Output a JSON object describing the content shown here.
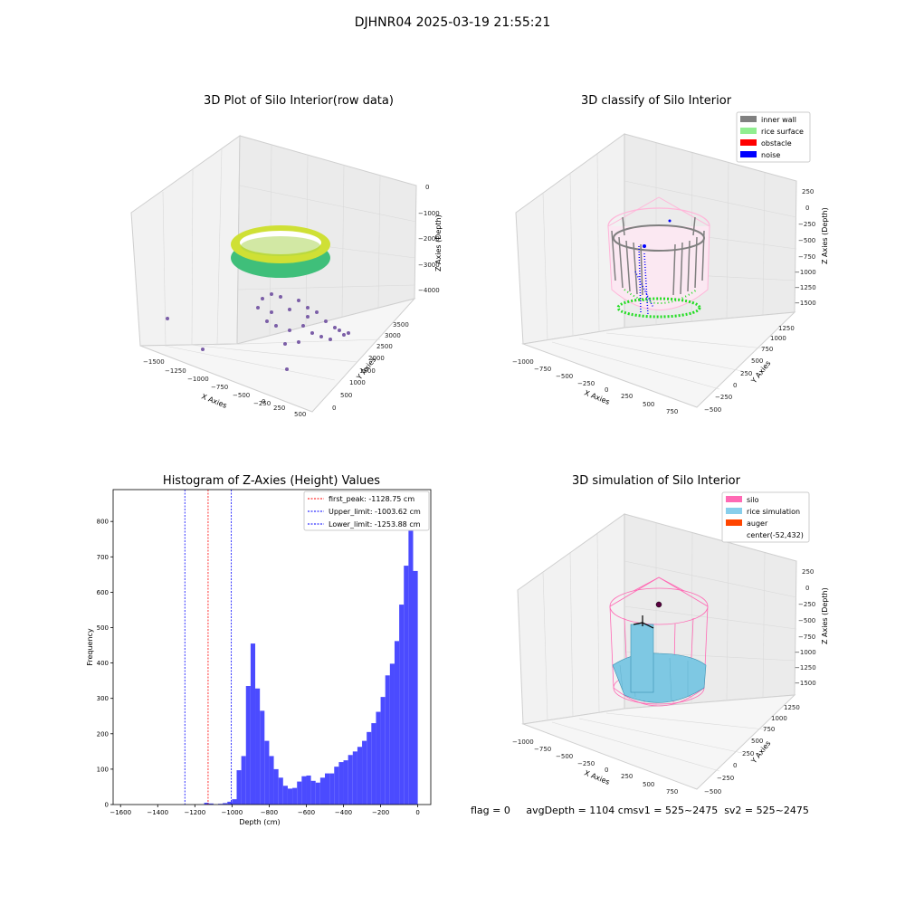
{
  "figure": {
    "title": "DJHNR04 2025-03-19 21:55:21"
  },
  "panels": {
    "raw": {
      "title": "3D Plot of Silo Interior(row data)",
      "xlabel": "X Axies",
      "ylabel": "Y Axies",
      "zlabel": "Z Axies (Depth)",
      "xticks": [
        "−1500",
        "−1250",
        "−1000",
        "−750",
        "−500",
        "−250",
        "0",
        "250",
        "500"
      ],
      "yticks": [
        "0",
        "500",
        "1000",
        "1500",
        "2000",
        "2500",
        "3000",
        "3500"
      ],
      "zticks": [
        "0",
        "−1000",
        "−2000",
        "−3000",
        "−4000"
      ]
    },
    "classify": {
      "title": "3D classify of Silo Interior",
      "xlabel": "X Axies",
      "ylabel": "Y Axies",
      "zlabel": "Z Axies (Depth)",
      "xticks": [
        "−1000",
        "−750",
        "−500",
        "−250",
        "0",
        "250",
        "500",
        "750"
      ],
      "yticks": [
        "−500",
        "−250",
        "0",
        "250",
        "500",
        "750",
        "1000",
        "1250"
      ],
      "zticks": [
        "250",
        "0",
        "−250",
        "−500",
        "−750",
        "−1000",
        "−1250",
        "−1500"
      ],
      "legend": [
        {
          "label": "inner wall",
          "color": "#808080"
        },
        {
          "label": "rice surface",
          "color": "#90ee90"
        },
        {
          "label": "obstacle",
          "color": "#ff0000"
        },
        {
          "label": "noise",
          "color": "#0000ff"
        }
      ]
    },
    "simulation": {
      "title": "3D simulation of Silo Interior",
      "xlabel": "X Axies",
      "ylabel": "Y Axies",
      "zlabel": "Z Axies (Depth)",
      "xticks": [
        "−1000",
        "−750",
        "−500",
        "−250",
        "0",
        "250",
        "500",
        "750"
      ],
      "yticks": [
        "−500",
        "−250",
        "0",
        "250",
        "500",
        "750",
        "1000",
        "1250"
      ],
      "zticks": [
        "250",
        "0",
        "−250",
        "−500",
        "−750",
        "−1000",
        "−1250",
        "−1500"
      ],
      "legend": [
        {
          "label": "silo",
          "color": "#ff69b4"
        },
        {
          "label": "rice simulation",
          "color": "#87ceeb"
        },
        {
          "label": "auger",
          "color": "#ff4500"
        },
        {
          "label": "center(-52,432)",
          "color": ""
        }
      ],
      "status": "flag = 0     avgDepth = 1104 cmsv1 = 525~2475  sv2 = 525~2475"
    }
  },
  "chart_data": {
    "type": "bar",
    "title": "Histogram of Z-Axies (Height) Values",
    "xlabel": "Depth (cm)",
    "ylabel": "Frequency",
    "xlim": [
      -1640,
      70
    ],
    "ylim": [
      0,
      890
    ],
    "xticks": [
      -1600,
      -1400,
      -1200,
      -1000,
      -800,
      -600,
      -400,
      -200,
      0
    ],
    "yticks": [
      0,
      100,
      200,
      300,
      400,
      500,
      600,
      700,
      800
    ],
    "bin_width": 25,
    "bin_starts": [
      -1400,
      -1375,
      -1350,
      -1325,
      -1300,
      -1275,
      -1250,
      -1225,
      -1200,
      -1175,
      -1150,
      -1125,
      -1100,
      -1075,
      -1050,
      -1025,
      -1000,
      -975,
      -950,
      -925,
      -900,
      -875,
      -850,
      -825,
      -800,
      -775,
      -750,
      -725,
      -700,
      -675,
      -650,
      -625,
      -600,
      -575,
      -550,
      -525,
      -500,
      -475,
      -450,
      -425,
      -400,
      -375,
      -350,
      -325,
      -300,
      -275,
      -250,
      -225,
      -200,
      -175,
      -150,
      -125,
      -100,
      -75,
      -50,
      -25
    ],
    "values": [
      5,
      3,
      0,
      2,
      4,
      8,
      15,
      97,
      137,
      335,
      455,
      328,
      265,
      180,
      137,
      100,
      76,
      53,
      45,
      47,
      65,
      80,
      82,
      67,
      62,
      76,
      88,
      88,
      107,
      120,
      125,
      140,
      150,
      163,
      180,
      205,
      230,
      262,
      304,
      365,
      398,
      462,
      565,
      675,
      845,
      660
    ],
    "value_offset": 10,
    "bar_color": "#4b4bff",
    "lines": [
      {
        "name": "first_peak: -1128.75 cm",
        "x": -1128.75,
        "color": "#ff0000"
      },
      {
        "name": "Upper_limit: -1003.62 cm",
        "x": -1003.62,
        "color": "#0000ff"
      },
      {
        "name": "Lower_limit: -1253.88 cm",
        "x": -1253.88,
        "color": "#0000ff"
      }
    ],
    "legend_position": "top-right"
  }
}
